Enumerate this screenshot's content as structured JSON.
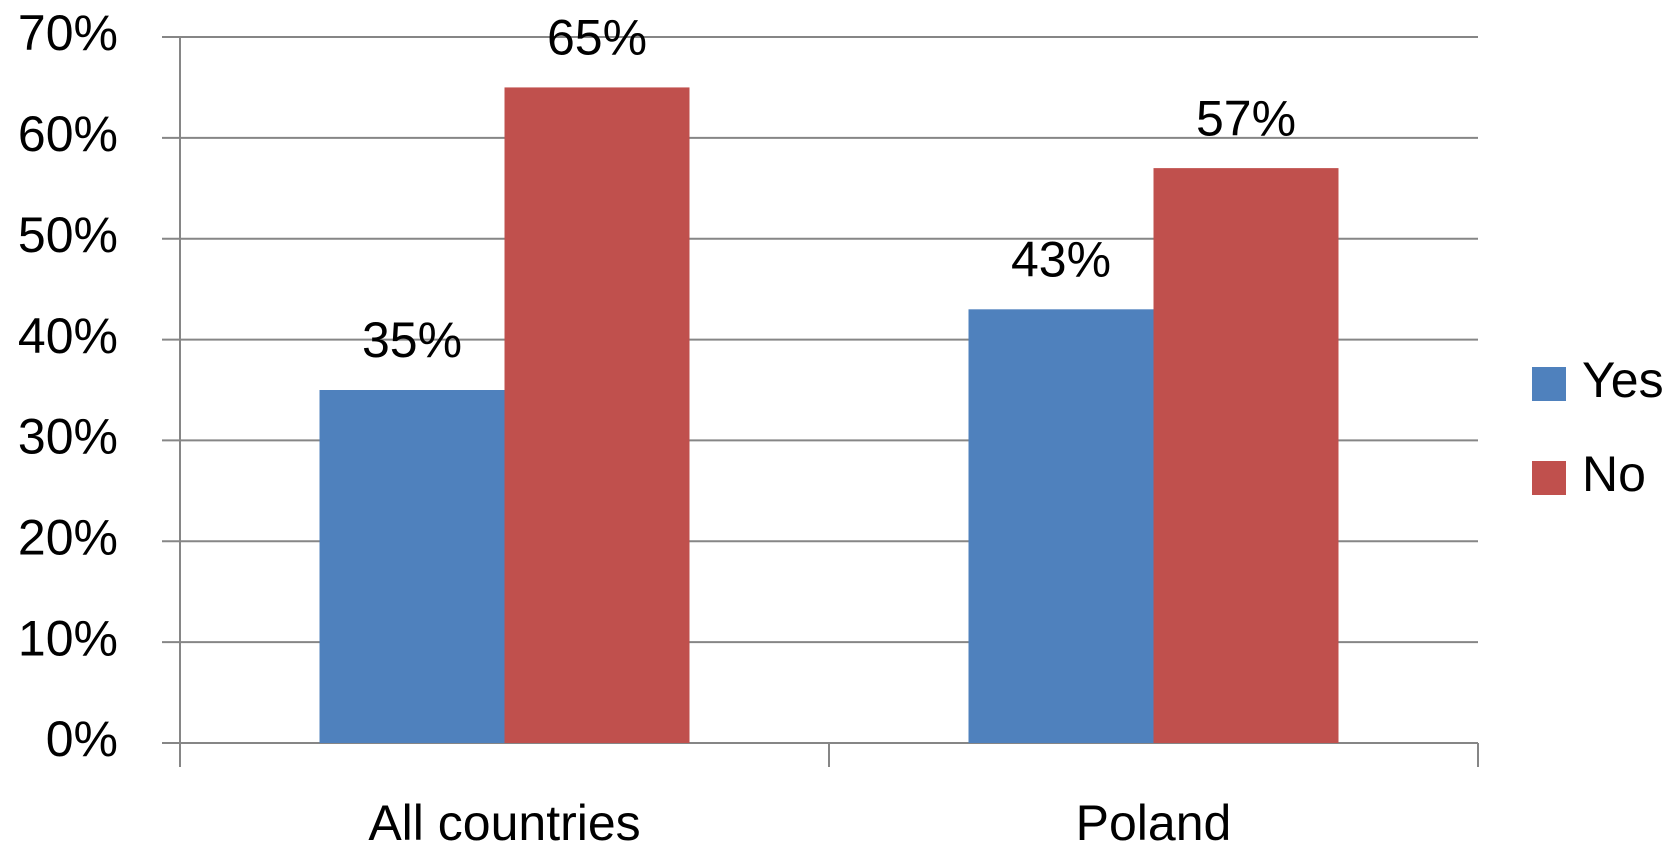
{
  "chart_data": {
    "type": "bar",
    "categories": [
      "All countries",
      "Poland"
    ],
    "series": [
      {
        "name": "Yes",
        "color": "#4f81bd",
        "values": [
          35,
          43
        ],
        "value_labels": [
          "35%",
          "43%"
        ]
      },
      {
        "name": "No",
        "color": "#c0504d",
        "values": [
          65,
          57
        ],
        "value_labels": [
          "65%",
          "57%"
        ]
      }
    ],
    "ylim": [
      0,
      70
    ],
    "yticks": [
      {
        "value": 0,
        "label": "0%"
      },
      {
        "value": 10,
        "label": "10%"
      },
      {
        "value": 20,
        "label": "20%"
      },
      {
        "value": 30,
        "label": "30%"
      },
      {
        "value": 40,
        "label": "40%"
      },
      {
        "value": 50,
        "label": "50%"
      },
      {
        "value": 60,
        "label": "60%"
      },
      {
        "value": 70,
        "label": "70%"
      }
    ],
    "grid": true,
    "legend": "right"
  }
}
